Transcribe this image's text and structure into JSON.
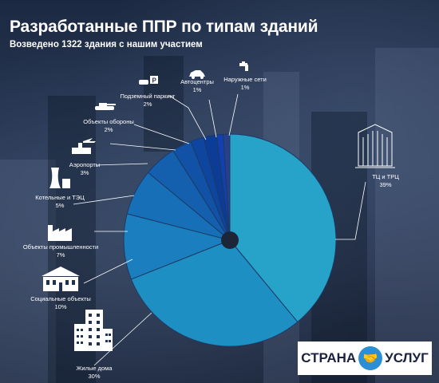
{
  "header": {
    "title": "Разработанные ППР по типам зданий",
    "subtitle": "Возведено 1322 здания с нашим участием"
  },
  "brand": {
    "left_text": "СТРАНА",
    "right_text": "УСЛУГ",
    "icon": "handshake-icon",
    "circle_color": "#2c8fd6"
  },
  "chart_data": {
    "type": "pie",
    "title": "Разработанные ППР по типам зданий",
    "subtitle": "Возведено 1322 здания с нашим участием",
    "unit": "%",
    "slices": [
      {
        "name": "ТЦ и ТРЦ",
        "pct_label": "39%",
        "value": 39,
        "color": "#27a3c9",
        "icon": "shopping-center-icon"
      },
      {
        "name": "Жилые дома",
        "pct_label": "30%",
        "value": 30,
        "color": "#1e8fc2",
        "icon": "apartment-building-icon"
      },
      {
        "name": "Социальные объекты",
        "pct_label": "10%",
        "value": 10,
        "color": "#1b7fbf",
        "icon": "school-building-icon"
      },
      {
        "name": "Объекты промышленности",
        "pct_label": "7%",
        "value": 7,
        "color": "#176fb8",
        "icon": "factory-icon"
      },
      {
        "name": "Котельные и ТЭЦ",
        "pct_label": "5%",
        "value": 5,
        "color": "#145fae",
        "icon": "power-plant-icon"
      },
      {
        "name": "Аэропорты",
        "pct_label": "3%",
        "value": 3,
        "color": "#1152a6",
        "icon": "airport-icon"
      },
      {
        "name": "Объекты обороны",
        "pct_label": "2%",
        "value": 2,
        "color": "#0e469f",
        "icon": "tank-icon"
      },
      {
        "name": "Подземный паркинг",
        "pct_label": "2%",
        "value": 2,
        "color": "#0c3c96",
        "icon": "parking-icon"
      },
      {
        "name": "Автоцентры",
        "pct_label": "1%",
        "value": 1,
        "color": "#1240b0",
        "icon": "car-icon"
      },
      {
        "name": "Наружные сети",
        "pct_label": "1%",
        "value": 1,
        "color": "#2a3f8a",
        "icon": "water-tap-icon"
      }
    ]
  }
}
